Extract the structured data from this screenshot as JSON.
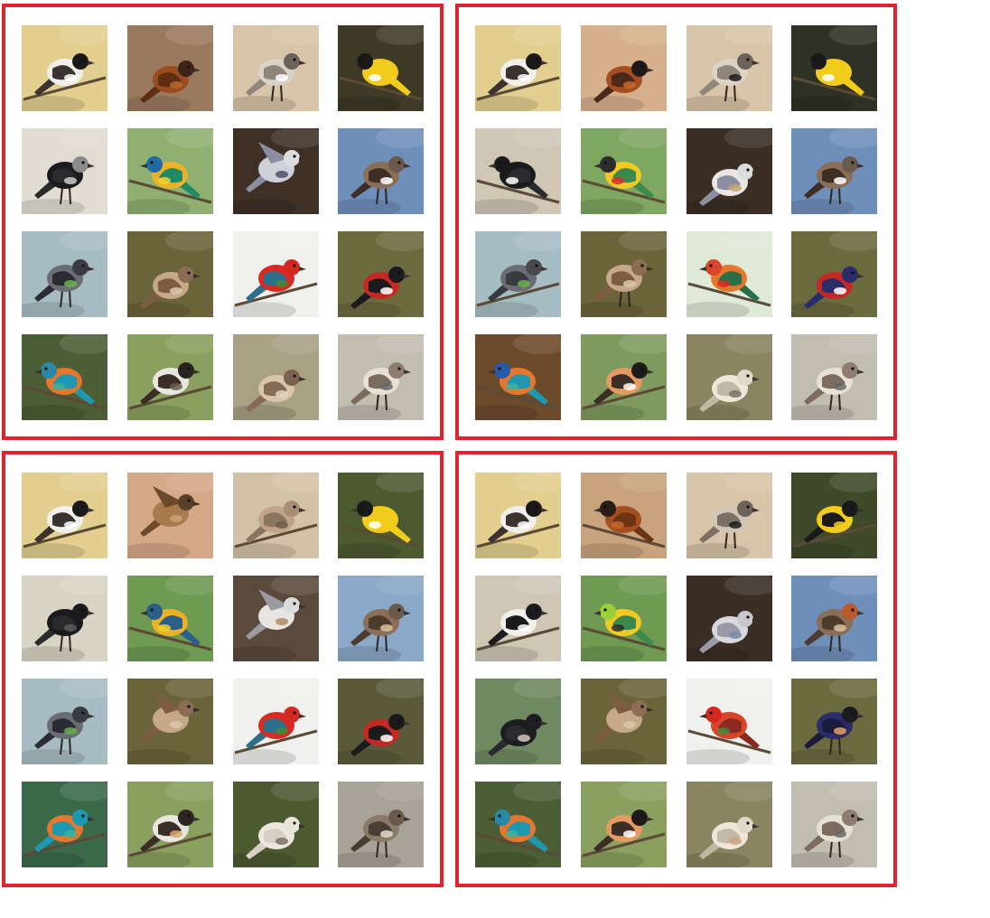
{
  "frame_color": "#e0232e",
  "panels": [
    {
      "tiles": [
        {
          "bg": "#e2cf8f",
          "body": "#f1efe9",
          "wing": "#3a3330",
          "head": "#1b1a1a",
          "accent": "#ffffff",
          "pose": "perch-right"
        },
        {
          "bg": "#9a7a5e",
          "body": "#9a4b1f",
          "wing": "#5e2e12",
          "head": "#3d2416",
          "accent": "#b5662e",
          "pose": "sit"
        },
        {
          "bg": "#d8c4a9",
          "body": "#d9d3c5",
          "wing": "#8f857a",
          "head": "#6b625b",
          "accent": "#ffffff",
          "pose": "stand"
        },
        {
          "bg": "#3e3a26",
          "body": "#f1cc1a",
          "wing": "#f1cc1a",
          "head": "#1a1a1a",
          "accent": "#ffffff",
          "pose": "perch-left"
        },
        {
          "bg": "#e2ddd3",
          "body": "#1b1b1d",
          "wing": "#2b2b2e",
          "head": "#8b8b8b",
          "accent": "#cccccc",
          "pose": "stand"
        },
        {
          "bg": "#8fb071",
          "body": "#ecb227",
          "wing": "#1f8a64",
          "head": "#1f6ca3",
          "accent": "#f1cf30",
          "pose": "perch-left"
        },
        {
          "bg": "#3f3026",
          "body": "#cfd0d8",
          "wing": "#8b8ea0",
          "head": "#dcdcdc",
          "accent": "#4a4f6a",
          "pose": "fly"
        },
        {
          "bg": "#6f8fbb",
          "body": "#8a6f58",
          "wing": "#3d2f24",
          "head": "#6b5a4b",
          "accent": "#ffffff",
          "pose": "stand"
        },
        {
          "bg": "#a6bcc3",
          "body": "#6b6c74",
          "wing": "#2b2c33",
          "head": "#3a3b40",
          "accent": "#69b04f",
          "pose": "stand"
        },
        {
          "bg": "#6b643a",
          "body": "#c4a888",
          "wing": "#7d5d42",
          "head": "#8a6d52",
          "accent": "#d9c6ad",
          "pose": "sit"
        },
        {
          "bg": "#f0f0ee",
          "body": "#d82a22",
          "wing": "#2b6f8a",
          "head": "#d22a20",
          "accent": "#3f8c3a",
          "pose": "perch-right"
        },
        {
          "bg": "#6c6a3f",
          "body": "#c42a23",
          "wing": "#1b1b1e",
          "head": "#1b1b1e",
          "accent": "#ffffff",
          "pose": "sit"
        },
        {
          "bg": "#4c5e36",
          "body": "#e5772c",
          "wing": "#1e98b1",
          "head": "#2a8aa6",
          "accent": "#3ab2a2",
          "pose": "perch-left"
        },
        {
          "bg": "#8aa05e",
          "body": "#e9e6e0",
          "wing": "#3a2e27",
          "head": "#2a2422",
          "accent": "#6c5b4e",
          "pose": "perch-right"
        },
        {
          "bg": "#a8a184",
          "body": "#d9c5a9",
          "wing": "#856b55",
          "head": "#7a624e",
          "accent": "#e0d4c3",
          "pose": "sit"
        },
        {
          "bg": "#c2bdb1",
          "body": "#e7e0d5",
          "wing": "#7c6c60",
          "head": "#8d7c6f",
          "accent": "#686868",
          "pose": "stand"
        }
      ]
    },
    {
      "tiles": [
        {
          "bg": "#e2cf8f",
          "body": "#f1efe9",
          "wing": "#3a3330",
          "head": "#1b1a1a",
          "accent": "#ffffff",
          "pose": "perch-right"
        },
        {
          "bg": "#d6b08d",
          "body": "#a54e1f",
          "wing": "#4b2a1a",
          "head": "#1f1a18",
          "accent": "#c46a2b",
          "pose": "sit"
        },
        {
          "bg": "#d8c4a9",
          "body": "#dcd3c5",
          "wing": "#8f857a",
          "head": "#6b625b",
          "accent": "#1a1a1a",
          "pose": "stand"
        },
        {
          "bg": "#2f3124",
          "body": "#f1cc1a",
          "wing": "#f1cc1a",
          "head": "#1a1a1a",
          "accent": "#ffffff",
          "pose": "perch-left"
        },
        {
          "bg": "#cfc6b4",
          "body": "#1b1b1d",
          "wing": "#2b2b2e",
          "head": "#1b1b1d",
          "accent": "#ffffff",
          "pose": "perch-left"
        },
        {
          "bg": "#7ea761",
          "body": "#f0c927",
          "wing": "#3a8a4e",
          "head": "#2c2c2c",
          "accent": "#d72b26",
          "pose": "perch-left"
        },
        {
          "bg": "#3a2e25",
          "body": "#e8e6e2",
          "wing": "#8b8ea0",
          "head": "#dcdcdc",
          "accent": "#c8a46a",
          "pose": "sit"
        },
        {
          "bg": "#6f8fbb",
          "body": "#8a6f58",
          "wing": "#3d2f24",
          "head": "#6b5a4b",
          "accent": "#ffffff",
          "pose": "stand"
        },
        {
          "bg": "#a6bcc3",
          "body": "#6b6c74",
          "wing": "#3a3b40",
          "head": "#4a4b50",
          "accent": "#69b04f",
          "pose": "perch-right"
        },
        {
          "bg": "#6b643a",
          "body": "#c4a888",
          "wing": "#7d5d42",
          "head": "#8a6d52",
          "accent": "#d9c6ad",
          "pose": "stand"
        },
        {
          "bg": "#dfe9d8",
          "body": "#e5772c",
          "wing": "#2b6f4a",
          "head": "#d8452a",
          "accent": "#d82a22",
          "pose": "perch-left"
        },
        {
          "bg": "#6c6a3f",
          "body": "#c42a23",
          "wing": "#2a2d6a",
          "head": "#2a2d6a",
          "accent": "#ffffff",
          "pose": "sit"
        },
        {
          "bg": "#6c4a2c",
          "body": "#e5772c",
          "wing": "#1e98b1",
          "head": "#2a5aa6",
          "accent": "#3ab2a2",
          "pose": "perch-left"
        },
        {
          "bg": "#7f9a5e",
          "body": "#e49a60",
          "wing": "#3a2e27",
          "head": "#1e1a18",
          "accent": "#ffffff",
          "pose": "perch-right"
        },
        {
          "bg": "#8a8460",
          "body": "#efe6d8",
          "wing": "#c2b8a6",
          "head": "#e2d8c8",
          "accent": "#7a7060",
          "pose": "sit"
        },
        {
          "bg": "#c2bdb1",
          "body": "#e7e0d5",
          "wing": "#7c6c60",
          "head": "#8d7c6f",
          "accent": "#686868",
          "pose": "stand"
        }
      ]
    },
    {
      "tiles": [
        {
          "bg": "#e2cf8f",
          "body": "#f1efe9",
          "wing": "#3a3330",
          "head": "#1b1a1a",
          "accent": "#ffffff",
          "pose": "perch-right"
        },
        {
          "bg": "#d5a888",
          "body": "#a97a4e",
          "wing": "#6b4a2e",
          "head": "#5a4028",
          "accent": "#c9a279",
          "pose": "fly"
        },
        {
          "bg": "#d4c2a8",
          "body": "#bfa48a",
          "wing": "#8c7560",
          "head": "#a88d74",
          "accent": "#6d5a49",
          "pose": "perch-right"
        },
        {
          "bg": "#4c5a30",
          "body": "#f1cc1a",
          "wing": "#f1cc1a",
          "head": "#1a1a1a",
          "accent": "#ffffff",
          "pose": "perch-left"
        },
        {
          "bg": "#d8d4c4",
          "body": "#1b1b1d",
          "wing": "#2b2b2e",
          "head": "#1b1b1d",
          "accent": "#5a5a5a",
          "pose": "stand"
        },
        {
          "bg": "#6f9a52",
          "body": "#ecb227",
          "wing": "#2a5f8a",
          "head": "#2a5f8a",
          "accent": "#f1cf30",
          "pose": "perch-left"
        },
        {
          "bg": "#5a4a3c",
          "body": "#e8e6e2",
          "wing": "#9a9aa0",
          "head": "#dcdcdc",
          "accent": "#b08a60",
          "pose": "fly"
        },
        {
          "bg": "#8aa8c8",
          "body": "#8a6f58",
          "wing": "#4d3b2c",
          "head": "#6b5a4b",
          "accent": "#d7c19a",
          "pose": "stand"
        },
        {
          "bg": "#a6bcc3",
          "body": "#6b6c74",
          "wing": "#2b2c33",
          "head": "#3a3b40",
          "accent": "#69b04f",
          "pose": "stand"
        },
        {
          "bg": "#6b643a",
          "body": "#c4a888",
          "wing": "#7d5d42",
          "head": "#8a6d52",
          "accent": "#d9c6ad",
          "pose": "fly"
        },
        {
          "bg": "#f0f0ee",
          "body": "#d82a22",
          "wing": "#2b6f8a",
          "head": "#d22a20",
          "accent": "#3f8c3a",
          "pose": "perch-right"
        },
        {
          "bg": "#5a5a3a",
          "body": "#c42a23",
          "wing": "#1b1b1e",
          "head": "#1b1b1e",
          "accent": "#ffffff",
          "pose": "sit"
        },
        {
          "bg": "#3a6a4a",
          "body": "#e5772c",
          "wing": "#1e98b1",
          "head": "#1e98b1",
          "accent": "#3ab2a2",
          "pose": "perch-right"
        },
        {
          "bg": "#8aa05e",
          "body": "#e9e6e0",
          "wing": "#3a2e27",
          "head": "#2a2422",
          "accent": "#d7a36a",
          "pose": "perch-right"
        },
        {
          "bg": "#4c5a30",
          "body": "#ece7de",
          "wing": "#d8d0c4",
          "head": "#e9e3d9",
          "accent": "#7a7060",
          "pose": "sit"
        },
        {
          "bg": "#a8a298",
          "body": "#8a7a68",
          "wing": "#4a3d33",
          "head": "#6a5a4c",
          "accent": "#e2dccf",
          "pose": "stand"
        }
      ]
    },
    {
      "tiles": [
        {
          "bg": "#e2cf8f",
          "body": "#f1efe9",
          "wing": "#3a3330",
          "head": "#1b1a1a",
          "accent": "#ffffff",
          "pose": "perch-right"
        },
        {
          "bg": "#c9a27e",
          "body": "#a54e1f",
          "wing": "#6b3414",
          "head": "#2a1d16",
          "accent": "#c46a2b",
          "pose": "perch-left"
        },
        {
          "bg": "#d8c4a9",
          "body": "#d0c6b5",
          "wing": "#7c7064",
          "head": "#6b625b",
          "accent": "#1a1a1a",
          "pose": "stand"
        },
        {
          "bg": "#3e4a2a",
          "body": "#f1cc1a",
          "wing": "#1a1a1a",
          "head": "#1a1a1a",
          "accent": "#f1cc1a",
          "pose": "perch-right"
        },
        {
          "bg": "#cfc6b4",
          "body": "#f1efe9",
          "wing": "#1b1b1d",
          "head": "#1b1b1d",
          "accent": "#ffffff",
          "pose": "perch-right"
        },
        {
          "bg": "#6f9a52",
          "body": "#f0c927",
          "wing": "#3a8a4e",
          "head": "#9acf3a",
          "accent": "#2c2c2c",
          "pose": "perch-left"
        },
        {
          "bg": "#3a2e25",
          "body": "#d8d8de",
          "wing": "#9a9aa6",
          "head": "#c8c8cc",
          "accent": "#7a8aa0",
          "pose": "sit"
        },
        {
          "bg": "#6f8fbb",
          "body": "#8a6f58",
          "wing": "#4d3b2c",
          "head": "#b85a2a",
          "accent": "#d7c19a",
          "pose": "stand"
        },
        {
          "bg": "#6f8a60",
          "body": "#1e1e22",
          "wing": "#2a2a30",
          "head": "#1e1e22",
          "accent": "#cfc6b4",
          "pose": "sit"
        },
        {
          "bg": "#6b643a",
          "body": "#c4a888",
          "wing": "#7d5d42",
          "head": "#8a6d52",
          "accent": "#d9c6ad",
          "pose": "fly"
        },
        {
          "bg": "#f0f0ee",
          "body": "#d8452a",
          "wing": "#8a2a20",
          "head": "#d22a20",
          "accent": "#3f8c3a",
          "pose": "perch-left"
        },
        {
          "bg": "#6c6a3f",
          "body": "#2a2d6a",
          "wing": "#1b1b3a",
          "head": "#1b1b1e",
          "accent": "#e5a060",
          "pose": "stand"
        },
        {
          "bg": "#4c5e36",
          "body": "#e5772c",
          "wing": "#1e98b1",
          "head": "#2a8aa6",
          "accent": "#3ab2a2",
          "pose": "perch-left"
        },
        {
          "bg": "#8aa05e",
          "body": "#e49a60",
          "wing": "#3a2e27",
          "head": "#1e1a18",
          "accent": "#ffffff",
          "pose": "perch-right"
        },
        {
          "bg": "#8a8460",
          "body": "#efe6d8",
          "wing": "#c2b8a6",
          "head": "#e2d8c8",
          "accent": "#c8a080",
          "pose": "sit"
        },
        {
          "bg": "#c2bdb1",
          "body": "#e7e0d5",
          "wing": "#7c6c60",
          "head": "#8d7c6f",
          "accent": "#686868",
          "pose": "stand"
        }
      ]
    }
  ]
}
